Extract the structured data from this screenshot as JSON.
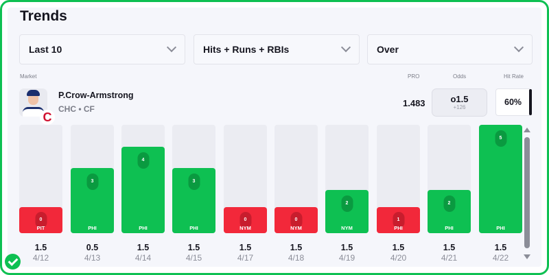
{
  "title": "Trends",
  "filters": {
    "range": "Last 10",
    "market": "Hits + Runs + RBIs",
    "side": "Over"
  },
  "labels": {
    "market": "Market",
    "pro": "PRO",
    "odds": "Odds",
    "hit_rate": "Hit Rate"
  },
  "player": {
    "name": "P.Crow-Armstrong",
    "team_pos": "CHC • CF",
    "team_logo": "C",
    "pro": "1.483",
    "odds_line": "o1.5",
    "odds_price": "+126",
    "hit_rate": "60%"
  },
  "colors": {
    "hit": "#0ec052",
    "miss": "#f2283a"
  },
  "games": [
    {
      "value": "0",
      "opp": "PIT",
      "line": "1.5",
      "date": "4/12"
    },
    {
      "value": "3",
      "opp": "PHI",
      "line": "0.5",
      "date": "4/13"
    },
    {
      "value": "4",
      "opp": "PHI",
      "line": "1.5",
      "date": "4/14"
    },
    {
      "value": "3",
      "opp": "PHI",
      "line": "1.5",
      "date": "4/15"
    },
    {
      "value": "0",
      "opp": "NYM",
      "line": "1.5",
      "date": "4/17"
    },
    {
      "value": "0",
      "opp": "NYM",
      "line": "1.5",
      "date": "4/18"
    },
    {
      "value": "2",
      "opp": "NYM",
      "line": "1.5",
      "date": "4/19"
    },
    {
      "value": "1",
      "opp": "PHI",
      "line": "1.5",
      "date": "4/20"
    },
    {
      "value": "2",
      "opp": "PHI",
      "line": "1.5",
      "date": "4/21"
    },
    {
      "value": "5",
      "opp": "PHI",
      "line": "1.5",
      "date": "4/22"
    }
  ]
}
